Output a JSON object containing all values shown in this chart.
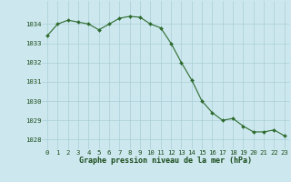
{
  "hours": [
    0,
    1,
    2,
    3,
    4,
    5,
    6,
    7,
    8,
    9,
    10,
    11,
    12,
    13,
    14,
    15,
    16,
    17,
    18,
    19,
    20,
    21,
    22,
    23
  ],
  "pressure": [
    1033.4,
    1034.0,
    1034.2,
    1034.1,
    1034.0,
    1033.7,
    1034.0,
    1034.3,
    1034.4,
    1034.35,
    1034.0,
    1033.8,
    1033.0,
    1032.0,
    1031.1,
    1030.0,
    1029.4,
    1029.0,
    1029.1,
    1028.7,
    1028.4,
    1028.4,
    1028.5,
    1028.2
  ],
  "line_color": "#2d6a2d",
  "marker_color": "#2d6a2d",
  "bg_color": "#cce8ee",
  "grid_color": "#aacdd6",
  "xlabel": "Graphe pression niveau de la mer (hPa)",
  "xlabel_color": "#1a4a1a",
  "tick_label_color": "#1a4a1a",
  "ylim": [
    1027.5,
    1035.2
  ],
  "yticks": [
    1028,
    1029,
    1030,
    1031,
    1032,
    1033,
    1034
  ],
  "xticks": [
    0,
    1,
    2,
    3,
    4,
    5,
    6,
    7,
    8,
    9,
    10,
    11,
    12,
    13,
    14,
    15,
    16,
    17,
    18,
    19,
    20,
    21,
    22,
    23
  ],
  "tick_fontsize": 5.2,
  "xlabel_fontsize": 6.0,
  "linewidth": 0.8,
  "markersize": 2.0
}
